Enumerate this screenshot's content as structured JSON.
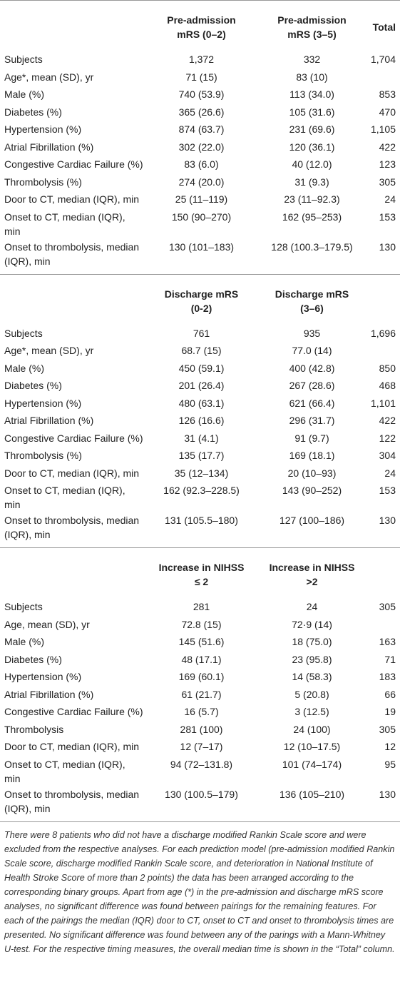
{
  "sections": [
    {
      "columns": [
        [
          "Pre-admission",
          "mRS (0–2)"
        ],
        [
          "Pre-admission",
          "mRS (3–5)"
        ],
        [
          "Total"
        ]
      ],
      "rows": [
        [
          "Subjects",
          "1,372",
          "332",
          "1,704"
        ],
        [
          "Age*, mean (SD), yr",
          "71 (15)",
          "83 (10)",
          null
        ],
        [
          "Male (%)",
          "740 (53.9)",
          "113 (34.0)",
          "853"
        ],
        [
          "Diabetes (%)",
          "365 (26.6)",
          "105 (31.6)",
          "470"
        ],
        [
          "Hypertension (%)",
          "874 (63.7)",
          "231 (69.6)",
          "1,105"
        ],
        [
          "Atrial Fibrillation (%)",
          "302 (22.0)",
          "120 (36.1)",
          "422"
        ],
        [
          "Congestive Cardiac Failure (%)",
          "83 (6.0)",
          "40 (12.0)",
          "123"
        ],
        [
          "Thrombolysis (%)",
          "274 (20.0)",
          "31 (9.3)",
          "305"
        ],
        [
          "Door to CT, median (IQR), min",
          "25 (11–119)",
          "23 (11–92.3)",
          "24"
        ],
        [
          "Onset to CT, median (IQR), min",
          "150 (90–270)",
          "162 (95–253)",
          "153"
        ],
        [
          "Onset to thrombolysis, median (IQR), min",
          "130 (101–183)",
          "128 (100.3–179.5)",
          "130"
        ]
      ]
    },
    {
      "columns": [
        [
          "Discharge mRS",
          "(0-2)"
        ],
        [
          "Discharge mRS",
          "(3–6)"
        ]
      ],
      "rows": [
        [
          "Subjects",
          "761",
          "935",
          "1,696"
        ],
        [
          "Age*, mean (SD), yr",
          "68.7 (15)",
          "77.0 (14)",
          null
        ],
        [
          "Male (%)",
          "450 (59.1)",
          "400 (42.8)",
          "850"
        ],
        [
          "Diabetes (%)",
          "201 (26.4)",
          "267 (28.6)",
          "468"
        ],
        [
          "Hypertension (%)",
          "480 (63.1)",
          "621 (66.4)",
          "1,101"
        ],
        [
          "Atrial Fibrillation (%)",
          "126 (16.6)",
          "296 (31.7)",
          "422"
        ],
        [
          "Congestive Cardiac Failure (%)",
          "31 (4.1)",
          "91 (9.7)",
          "122"
        ],
        [
          "Thrombolysis (%)",
          "135 (17.7)",
          "169 (18.1)",
          "304"
        ],
        [
          "Door to CT, median (IQR), min",
          "35 (12–134)",
          "20 (10–93)",
          "24"
        ],
        [
          "Onset to CT, median (IQR), min",
          "162 (92.3–228.5)",
          "143 (90–252)",
          "153"
        ],
        [
          "Onset to thrombolysis, median (IQR), min",
          "131 (105.5–180)",
          "127 (100–186)",
          "130"
        ]
      ]
    },
    {
      "columns": [
        [
          "Increase in NIHSS",
          "≤ 2"
        ],
        [
          "Increase in NIHSS",
          ">2"
        ]
      ],
      "rows": [
        [
          "Subjects",
          "281",
          "24",
          "305"
        ],
        [
          "Age, mean (SD), yr",
          "72.8 (15)",
          "72·9 (14)",
          null
        ],
        [
          "Male (%)",
          "145 (51.6)",
          "18 (75.0)",
          "163"
        ],
        [
          "Diabetes (%)",
          "48 (17.1)",
          "23 (95.8)",
          "71"
        ],
        [
          "Hypertension (%)",
          "169 (60.1)",
          "14 (58.3)",
          "183"
        ],
        [
          "Atrial Fibrillation (%)",
          "61 (21.7)",
          "5 (20.8)",
          "66"
        ],
        [
          "Congestive Cardiac Failure (%)",
          "16 (5.7)",
          "3 (12.5)",
          "19"
        ],
        [
          "Thrombolysis",
          "281 (100)",
          "24 (100)",
          "305"
        ],
        [
          "Door to CT, median (IQR), min",
          "12 (7–17)",
          "12 (10–17.5)",
          "12"
        ],
        [
          "Onset to CT, median (IQR), min",
          "94 (72–131.8)",
          "101 (74–174)",
          "95"
        ],
        [
          "Onset to thrombolysis, median (IQR), min",
          "130 (100.5–179)",
          "136 (105–210)",
          "130"
        ]
      ]
    }
  ],
  "footnote": "There were 8 patients who did not have a discharge modified Rankin Scale score and were excluded from the respective analyses. For each prediction model (pre-admission modified Rankin Scale score, discharge modified Rankin Scale score, and deterioration in National Institute of Health Stroke Score of more than 2 points) the data has been arranged according to the corresponding binary groups. Apart from age (*) in the pre-admission and discharge mRS score analyses, no significant difference was found between pairings for the remaining features. For each of the pairings the median (IQR) door to CT, onset to CT and onset to thrombolysis times are presented. No significant difference was found between any of the parings with a Mann-Whitney U-test. For the respective timing measures, the overall median time is shown in the “Total” column."
}
